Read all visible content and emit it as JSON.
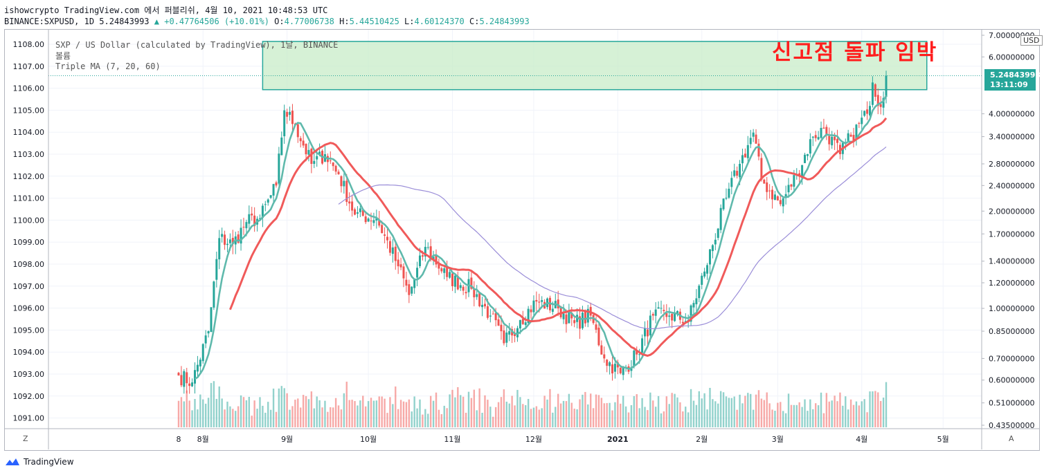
{
  "header": {
    "source_line": "ishowcrypto TradingView.com 에서 퍼블리쉬, 4월 10, 2021 10:48:53 UTC",
    "symbol": "BINANCE:SXPUSD, 1D 5.24843993",
    "change_arrow": "▲",
    "change": "+0.47764506 (+10.01%)",
    "o_label": "O:",
    "o": "4.77006738",
    "h_label": "H:",
    "h": "5.44510425",
    "l_label": "L:",
    "l": "4.60124370",
    "c_label": "C:",
    "c": "5.24843993"
  },
  "legend": {
    "series": "SXP / US Dollar (calculated by TradingView), 1날, BINANCE",
    "volume": "볼륨",
    "indicator": "Triple MA (7, 20, 60)"
  },
  "annotation": "신고점 돌파 임박",
  "currency": "USD",
  "last_price": "5.24843993",
  "countdown": "13:11:09",
  "corner_left": "Z",
  "corner_right": "A",
  "brand": "TradingView",
  "colors": {
    "up": "#26a69a",
    "down": "#ef5350",
    "ma7": "#5fb9ac",
    "ma20": "#f05a5a",
    "ma60": "#9a8dd8",
    "box": "#26a69a"
  },
  "chart_data": {
    "type": "candlestick",
    "title": "SXP / US Dollar",
    "xlabel": "",
    "ylabel": "",
    "x_ticks": [
      "8",
      "8월",
      "9월",
      "10월",
      "11월",
      "12월",
      "2021",
      "2월",
      "3월",
      "4월",
      "5월"
    ],
    "right_axis_ticks": [
      "7.00000000",
      "6.00000000",
      "4.00000000",
      "3.40000000",
      "2.80000000",
      "2.40000000",
      "2.00000000",
      "1.70000000",
      "1.40000000",
      "1.20000000",
      "1.00000000",
      "0.85000000",
      "0.70000000",
      "0.60000000",
      "0.51000000",
      "0.43500000"
    ],
    "left_axis_ticks": [
      "1108.00",
      "1107.00",
      "1106.00",
      "1105.00",
      "1104.00",
      "1103.00",
      "1102.00",
      "1101.00",
      "1100.00",
      "1099.00",
      "1098.00",
      "1097.00",
      "1096.00",
      "1095.00",
      "1094.00",
      "1093.00",
      "1092.00",
      "1091.00"
    ],
    "price_scale": "log",
    "ylim": [
      0.42,
      7.0
    ],
    "date_range": [
      "2020-07-23",
      "2021-04-10"
    ],
    "price_anchors": [
      {
        "date": "2020-07-23",
        "close": 0.62
      },
      {
        "date": "2020-07-28",
        "close": 0.59
      },
      {
        "date": "2020-08-03",
        "close": 0.85
      },
      {
        "date": "2020-08-07",
        "close": 1.65
      },
      {
        "date": "2020-08-12",
        "close": 1.58
      },
      {
        "date": "2020-08-17",
        "close": 1.85
      },
      {
        "date": "2020-08-22",
        "close": 1.9
      },
      {
        "date": "2020-08-28",
        "close": 2.4
      },
      {
        "date": "2020-08-31",
        "close": 4.1
      },
      {
        "date": "2020-09-04",
        "close": 3.7
      },
      {
        "date": "2020-09-10",
        "close": 2.8
      },
      {
        "date": "2020-09-15",
        "close": 3.0
      },
      {
        "date": "2020-09-20",
        "close": 2.6
      },
      {
        "date": "2020-09-26",
        "close": 1.95
      },
      {
        "date": "2020-10-04",
        "close": 1.9
      },
      {
        "date": "2020-10-12",
        "close": 1.35
      },
      {
        "date": "2020-10-16",
        "close": 1.1
      },
      {
        "date": "2020-10-22",
        "close": 1.55
      },
      {
        "date": "2020-10-30",
        "close": 1.25
      },
      {
        "date": "2020-11-08",
        "close": 1.15
      },
      {
        "date": "2020-11-15",
        "close": 0.95
      },
      {
        "date": "2020-11-20",
        "close": 0.78
      },
      {
        "date": "2020-11-26",
        "close": 0.92
      },
      {
        "date": "2020-12-02",
        "close": 1.05
      },
      {
        "date": "2020-12-10",
        "close": 1.0
      },
      {
        "date": "2020-12-16",
        "close": 0.9
      },
      {
        "date": "2020-12-22",
        "close": 0.95
      },
      {
        "date": "2020-12-27",
        "close": 0.7
      },
      {
        "date": "2021-01-02",
        "close": 0.63
      },
      {
        "date": "2021-01-08",
        "close": 0.72
      },
      {
        "date": "2021-01-14",
        "close": 0.95
      },
      {
        "date": "2021-01-20",
        "close": 0.95
      },
      {
        "date": "2021-01-27",
        "close": 0.92
      },
      {
        "date": "2021-02-02",
        "close": 1.3
      },
      {
        "date": "2021-02-10",
        "close": 2.2
      },
      {
        "date": "2021-02-15",
        "close": 2.8
      },
      {
        "date": "2021-02-20",
        "close": 3.5
      },
      {
        "date": "2021-02-23",
        "close": 2.5
      },
      {
        "date": "2021-03-02",
        "close": 2.1
      },
      {
        "date": "2021-03-08",
        "close": 2.6
      },
      {
        "date": "2021-03-14",
        "close": 3.4
      },
      {
        "date": "2021-03-18",
        "close": 3.6
      },
      {
        "date": "2021-03-24",
        "close": 3.0
      },
      {
        "date": "2021-03-28",
        "close": 3.4
      },
      {
        "date": "2021-04-03",
        "close": 4.0
      },
      {
        "date": "2021-04-05",
        "close": 5.0
      },
      {
        "date": "2021-04-08",
        "close": 4.2
      },
      {
        "date": "2021-04-10",
        "close": 5.25
      }
    ],
    "series": [
      {
        "name": "MA 7",
        "source": "close",
        "period": 7
      },
      {
        "name": "MA 20",
        "source": "close",
        "period": 20
      },
      {
        "name": "MA 60",
        "source": "close",
        "period": 60
      }
    ],
    "annotation_box": {
      "price_low": 4.75,
      "price_high": 6.7,
      "date_from": "2020-08-23",
      "date_to": "2021-04-25"
    },
    "grid": true,
    "legend_position": "top-left"
  }
}
